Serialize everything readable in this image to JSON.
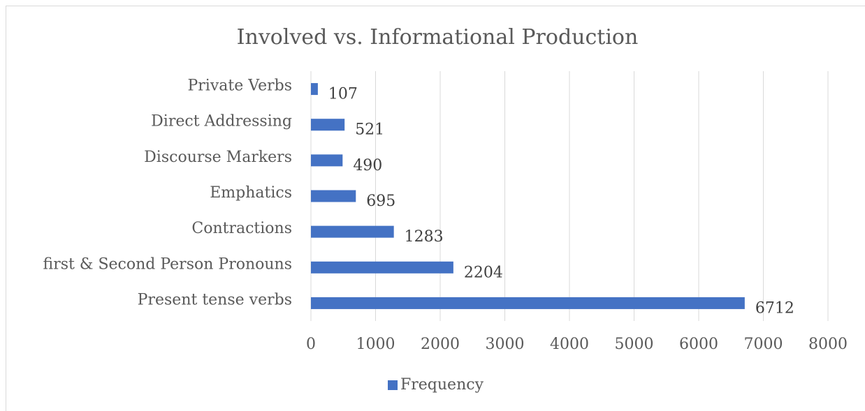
{
  "chart_data": {
    "type": "barh",
    "title": "Involved vs. Informational Production",
    "categories": [
      "Private Verbs",
      "Direct Addressing",
      "Discourse Markers",
      "Emphatics",
      "Contractions",
      "first & Second Person Pronouns",
      "Present tense verbs"
    ],
    "series": [
      {
        "name": "Frequency",
        "color": "#4472c4",
        "values": [
          107,
          521,
          490,
          695,
          1283,
          2204,
          6712
        ]
      }
    ],
    "xlim": [
      0,
      8000
    ],
    "xticks": [
      0,
      1000,
      2000,
      3000,
      4000,
      5000,
      6000,
      7000,
      8000
    ],
    "grid": true,
    "legend": "bottom"
  }
}
